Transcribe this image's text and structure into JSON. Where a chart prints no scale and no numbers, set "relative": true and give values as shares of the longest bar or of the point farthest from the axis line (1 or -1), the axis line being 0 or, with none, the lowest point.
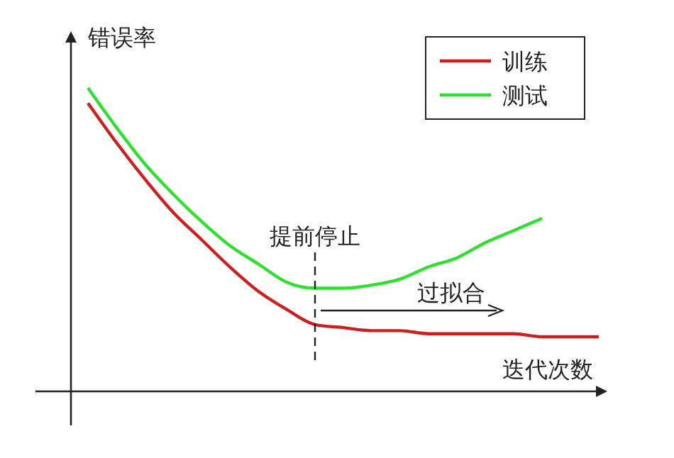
{
  "chart_data": {
    "type": "line",
    "relative": true,
    "xlabel": "迭代次数",
    "ylabel": "错误率",
    "legend": "top right",
    "marker": "none",
    "line_style": "solid",
    "categories": [
      null,
      null,
      null,
      null,
      null,
      null,
      null,
      null,
      null,
      null,
      null,
      null,
      null,
      null,
      null,
      null,
      null,
      null,
      null
    ],
    "series": [
      {
        "name": "训练",
        "color": "#cc2020",
        "values": [
          0.95,
          0.82,
          0.7,
          0.59,
          0.5,
          0.41,
          0.33,
          0.27,
          0.22,
          0.21,
          0.2,
          0.2,
          0.19,
          0.19,
          0.19,
          0.19,
          0.18,
          0.18,
          0.18
        ]
      },
      {
        "name": "测试",
        "color": "#30e030",
        "values": [
          1,
          0.87,
          0.75,
          0.65,
          0.56,
          0.48,
          0.42,
          0.36,
          0.34,
          0.34,
          0.35,
          0.37,
          0.41,
          0.44,
          0.49,
          0.53,
          0.57,
          null,
          null
        ]
      }
    ],
    "annotations": [
      "提前停止",
      "过拟合"
    ]
  }
}
